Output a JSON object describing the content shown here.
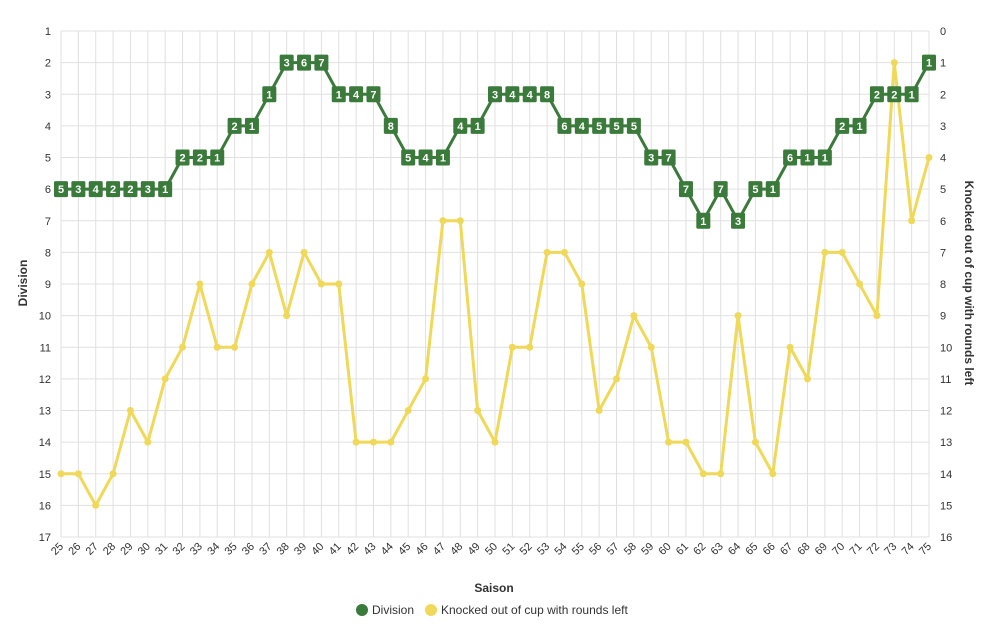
{
  "chart_data": {
    "type": "line",
    "xlabel": "Saison",
    "ylabel_left": "Division",
    "ylabel_right": "Knocked out of cup with rounds left",
    "x": [
      25,
      26,
      27,
      28,
      29,
      30,
      31,
      32,
      33,
      34,
      35,
      36,
      37,
      38,
      39,
      40,
      41,
      42,
      43,
      44,
      45,
      46,
      47,
      48,
      49,
      50,
      51,
      52,
      53,
      54,
      55,
      56,
      57,
      58,
      59,
      60,
      61,
      62,
      63,
      64,
      65,
      66,
      67,
      68,
      69,
      70,
      71,
      72,
      73,
      74,
      75
    ],
    "ylim_left": [
      1,
      17
    ],
    "ylim_right": [
      0,
      16
    ],
    "left_axis_reversed": true,
    "right_axis_reversed": true,
    "grid": true,
    "legend_position": "bottom",
    "series": [
      {
        "name": "Division",
        "axis": "left",
        "color": "#3a7a3a",
        "values": [
          6,
          6,
          6,
          6,
          6,
          6,
          6,
          5,
          5,
          5,
          4,
          4,
          3,
          2,
          2,
          2,
          3,
          3,
          3,
          4,
          5,
          5,
          5,
          4,
          4,
          3,
          3,
          3,
          3,
          4,
          4,
          4,
          4,
          4,
          5,
          5,
          6,
          7,
          6,
          7,
          6,
          6,
          5,
          5,
          5,
          4,
          4,
          3,
          3,
          3,
          2
        ],
        "point_labels": [
          "5",
          "3",
          "4",
          "2",
          "2",
          "3",
          "1",
          "2",
          "2",
          "1",
          "2",
          "1",
          "1",
          "3",
          "6",
          "7",
          "1",
          "4",
          "7",
          "8",
          "5",
          "4",
          "1",
          "4",
          "1",
          "3",
          "4",
          "4",
          "8",
          "6",
          "4",
          "5",
          "5",
          "5",
          "3",
          "7",
          "7",
          "1",
          "7",
          "3",
          "5",
          "1",
          "6",
          "1",
          "1",
          "2",
          "1",
          "2",
          "2",
          "1",
          "1"
        ]
      },
      {
        "name": "Knocked out of cup with rounds left",
        "axis": "right",
        "color": "#f0d858",
        "values": [
          14,
          14,
          15,
          14,
          12,
          13,
          11,
          10,
          8,
          10,
          10,
          8,
          7,
          9,
          7,
          8,
          8,
          13,
          13,
          13,
          12,
          11,
          6,
          6,
          12,
          13,
          10,
          10,
          7,
          7,
          8,
          12,
          11,
          9,
          10,
          13,
          13,
          14,
          14,
          9,
          13,
          14,
          10,
          11,
          7,
          7,
          8,
          9,
          1,
          6,
          4
        ]
      }
    ]
  }
}
